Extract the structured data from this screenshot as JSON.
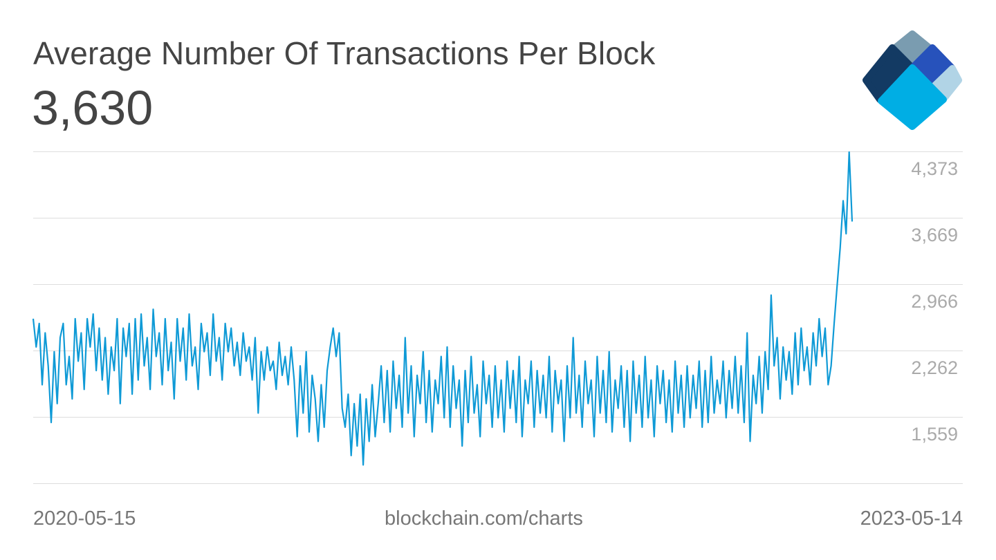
{
  "header": {
    "title": "Average Number Of Transactions Per Block",
    "current_value": "3,630"
  },
  "footer": {
    "start_date": "2020-05-15",
    "source": "blockchain.com/charts",
    "end_date": "2023-05-14"
  },
  "logo": {
    "colors": [
      "#7a9cb0",
      "#133a63",
      "#2752bb",
      "#b1d4e6",
      "#00aee4"
    ]
  },
  "colors": {
    "line": "#0f9ad6",
    "grid": "#dddddd",
    "tick_label": "#aaaaaa"
  },
  "chart_data": {
    "type": "line",
    "title": "Average Number Of Transactions Per Block",
    "x_start": "2020-05-15",
    "x_end": "2023-05-14",
    "xtick_labels": [
      "2020-05-15",
      "2023-05-14"
    ],
    "ylim": [
      856,
      4373
    ],
    "yticks": [
      1559,
      2262,
      2966,
      3669,
      4373
    ],
    "ytick_labels": [
      "1,559",
      "2,262",
      "2,966",
      "3,669",
      "4,373"
    ],
    "grid": true,
    "y_axis_position": "right",
    "values": [
      2600,
      2300,
      2550,
      1900,
      2450,
      2100,
      1500,
      2250,
      1700,
      2400,
      2550,
      1900,
      2200,
      1750,
      2600,
      2150,
      2450,
      1850,
      2600,
      2300,
      2650,
      2050,
      2500,
      1950,
      2400,
      1800,
      2300,
      2050,
      2600,
      1700,
      2500,
      2200,
      2550,
      1800,
      2600,
      1950,
      2650,
      2100,
      2400,
      1850,
      2700,
      2200,
      2450,
      1900,
      2600,
      2050,
      2350,
      1750,
      2600,
      2150,
      2500,
      1950,
      2650,
      2100,
      2300,
      1850,
      2550,
      2250,
      2450,
      2000,
      2650,
      2150,
      2400,
      1950,
      2550,
      2250,
      2500,
      2100,
      2350,
      2000,
      2450,
      2150,
      2300,
      1950,
      2400,
      1600,
      2250,
      1950,
      2300,
      2050,
      2150,
      1850,
      2350,
      2000,
      2200,
      1900,
      2300,
      1950,
      1350,
      2100,
      1600,
      2250,
      1400,
      2000,
      1750,
      1300,
      1900,
      1450,
      2050,
      2300,
      2500,
      2200,
      2450,
      1650,
      1450,
      1800,
      1150,
      1700,
      1250,
      1800,
      1050,
      1750,
      1300,
      1900,
      1350,
      1700,
      2100,
      1500,
      2050,
      1400,
      2150,
      1650,
      2000,
      1450,
      2400,
      1600,
      2100,
      1350,
      2000,
      1700,
      2250,
      1500,
      2050,
      1400,
      1950,
      1700,
      2200,
      1550,
      2300,
      1450,
      2100,
      1650,
      1950,
      1250,
      2050,
      1500,
      2200,
      1600,
      1900,
      1350,
      2150,
      1700,
      2000,
      1450,
      2100,
      1550,
      1950,
      1400,
      2150,
      1650,
      2050,
      1500,
      2200,
      1350,
      1950,
      1700,
      2150,
      1450,
      2050,
      1600,
      2000,
      1550,
      2200,
      1400,
      2050,
      1700,
      1950,
      1300,
      2100,
      1550,
      2400,
      1600,
      2000,
      1450,
      2150,
      1700,
      1950,
      1350,
      2200,
      1600,
      2050,
      1500,
      2250,
      1400,
      1950,
      1650,
      2100,
      1450,
      2050,
      1300,
      2150,
      1600,
      2000,
      1450,
      2200,
      1550,
      1950,
      1350,
      2100,
      1700,
      2050,
      1500,
      1950,
      1400,
      2150,
      1600,
      2000,
      1450,
      2100,
      1550,
      2000,
      1650,
      2150,
      1450,
      2050,
      1500,
      2200,
      1600,
      1950,
      1700,
      2150,
      1550,
      2050,
      1650,
      2200,
      1600,
      2100,
      1500,
      2450,
      1300,
      2000,
      1700,
      2200,
      1600,
      2250,
      1850,
      2850,
      2100,
      2400,
      1750,
      2300,
      1950,
      2250,
      1800,
      2450,
      1900,
      2500,
      2050,
      2300,
      1900,
      2450,
      2100,
      2600,
      2200,
      2500,
      1900,
      2100,
      2550,
      2950,
      3350,
      3850,
      3500,
      4366,
      3630
    ]
  }
}
